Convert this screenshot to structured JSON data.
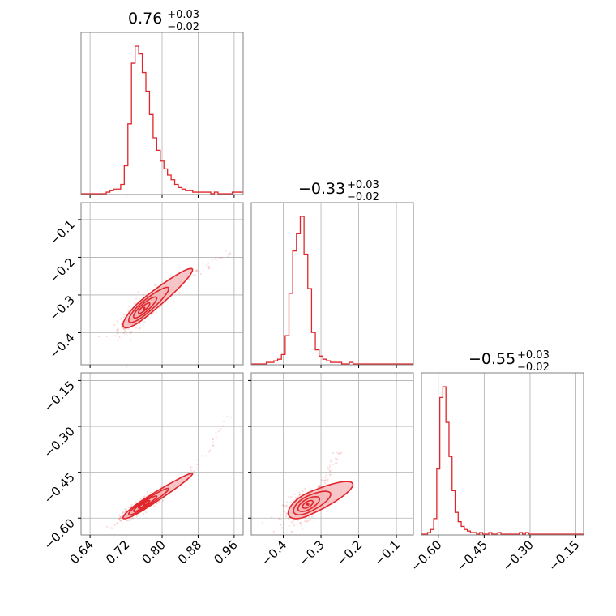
{
  "chart_data": {
    "type": "corner",
    "parameters": [
      {
        "titles": {
          "median": "0.76",
          "upper": "+0.03",
          "lower": "−0.02"
        },
        "range": [
          0.62,
          0.98
        ],
        "ticks": [
          0.64,
          0.72,
          0.8,
          0.88,
          0.96
        ],
        "tick_labels": [
          "0.64",
          "0.72",
          "0.80",
          "0.88",
          "0.96"
        ],
        "hist": {
          "bin_start": 0.62,
          "bin_width": 0.008,
          "counts": [
            0,
            0,
            0,
            0,
            0,
            0,
            0,
            1,
            2,
            3,
            3,
            6,
            18,
            45,
            84,
            95,
            90,
            78,
            66,
            51,
            36,
            28,
            21,
            16,
            12,
            9,
            6,
            4,
            3,
            2,
            2,
            1,
            1,
            1,
            1,
            1,
            0,
            1,
            0,
            0,
            0,
            0,
            1,
            1,
            1
          ]
        }
      },
      {
        "titles": {
          "median": "−0.33",
          "upper": "+0.03",
          "lower": "−0.02"
        },
        "range": [
          -0.485,
          -0.055
        ],
        "ticks": [
          -0.4,
          -0.3,
          -0.2,
          -0.1
        ],
        "tick_labels": [
          "−0.4",
          "−0.3",
          "−0.2",
          "−0.1"
        ],
        "hist": {
          "bin_start": -0.485,
          "bin_width": 0.01,
          "counts": [
            0,
            0,
            0,
            0,
            1,
            1,
            2,
            3,
            6,
            18,
            45,
            72,
            83,
            94,
            70,
            48,
            20,
            9,
            5,
            3,
            2,
            1,
            1,
            1,
            0,
            0,
            1,
            0,
            0,
            0,
            0,
            0,
            0,
            0,
            0,
            0,
            0,
            0,
            0,
            0,
            0,
            0,
            0
          ]
        }
      },
      {
        "titles": {
          "median": "−0.55",
          "upper": "+0.03",
          "lower": "−0.02"
        },
        "range": [
          -0.655,
          -0.125
        ],
        "ticks": [
          -0.6,
          -0.45,
          -0.3,
          -0.15
        ],
        "tick_labels": [
          "−0.60",
          "−0.45",
          "−0.30",
          "−0.15"
        ],
        "hist": {
          "bin_start": -0.655,
          "bin_width": 0.01,
          "counts": [
            0,
            0,
            1,
            3,
            10,
            42,
            88,
            95,
            72,
            50,
            28,
            14,
            8,
            5,
            3,
            2,
            1,
            1,
            0,
            1,
            0,
            0,
            1,
            0,
            0,
            1,
            0,
            0,
            0,
            0,
            0,
            0,
            1,
            0,
            1,
            0,
            0,
            0,
            0,
            0,
            0,
            0,
            0,
            0,
            0,
            0,
            0,
            0,
            0,
            0,
            0,
            0,
            0
          ]
        }
      }
    ],
    "pairs": [
      {
        "x_param": 0,
        "y_param": 1,
        "center": [
          0.76,
          -0.335
        ],
        "spread": [
          0.018,
          0.02
        ],
        "correlation": 0.85,
        "tail": [
          [
            0.8,
            -0.3
          ],
          [
            0.84,
            -0.27
          ],
          [
            0.9,
            -0.22
          ],
          [
            0.95,
            -0.19
          ]
        ]
      },
      {
        "x_param": 0,
        "y_param": 2,
        "center": [
          0.76,
          -0.555
        ],
        "spread": [
          0.018,
          0.018
        ],
        "correlation": 0.93,
        "tail": [
          [
            0.8,
            -0.52
          ],
          [
            0.85,
            -0.47
          ],
          [
            0.9,
            -0.38
          ],
          [
            0.95,
            -0.27
          ]
        ]
      },
      {
        "x_param": 1,
        "y_param": 2,
        "center": [
          -0.335,
          -0.555
        ],
        "spread": [
          0.02,
          0.018
        ],
        "correlation": 0.6,
        "tail": [
          [
            -0.31,
            -0.52
          ],
          [
            -0.29,
            -0.48
          ],
          [
            -0.27,
            -0.42
          ],
          [
            -0.25,
            -0.38
          ]
        ]
      }
    ],
    "colors": {
      "line": "#e0262b",
      "fill": "#f4b3b5",
      "grid": "#b0b0b0",
      "frame": "#808080"
    },
    "grid": true
  }
}
